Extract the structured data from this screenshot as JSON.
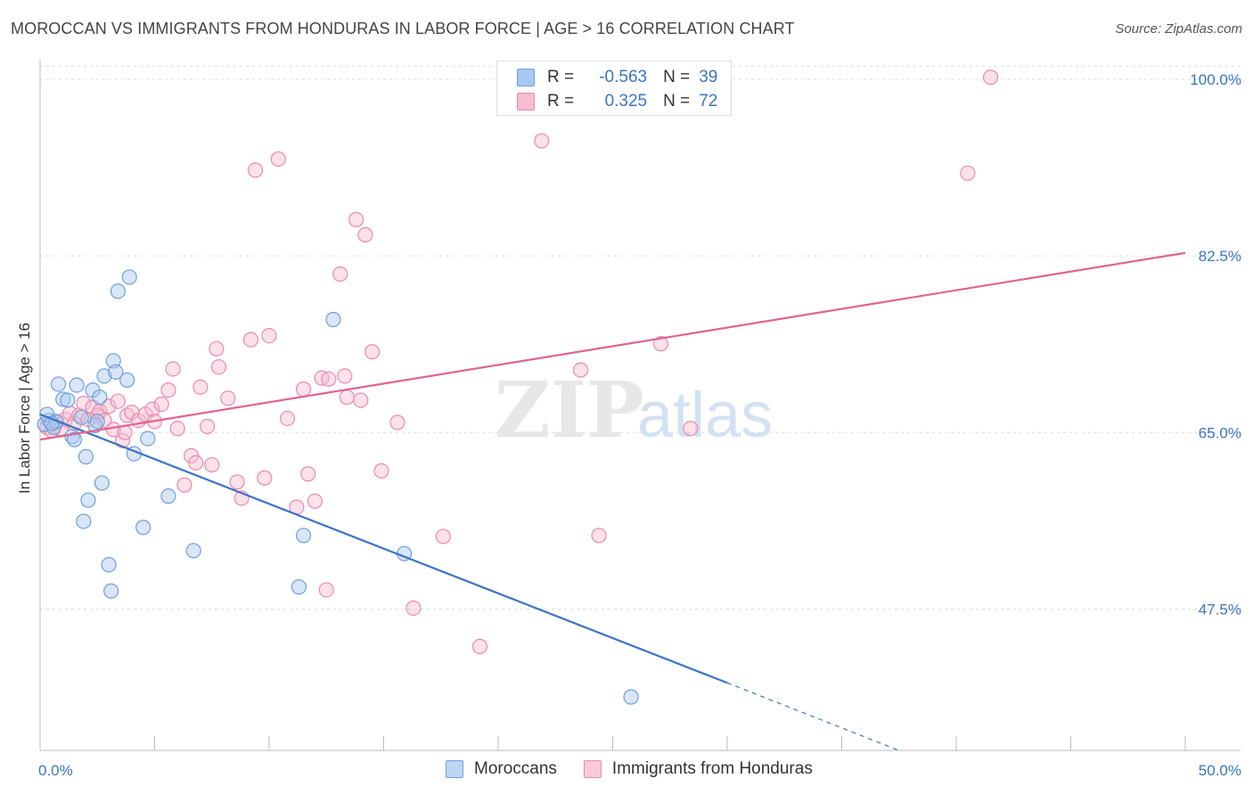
{
  "header": {
    "title": "MOROCCAN VS IMMIGRANTS FROM HONDURAS IN LABOR FORCE | AGE > 16 CORRELATION CHART",
    "source": "Source: ZipAtlas.com"
  },
  "watermark": {
    "zip": "ZIP",
    "atlas": "atlas"
  },
  "legend_top": {
    "rows": [
      {
        "r_label": "R =",
        "r_value": "-0.563",
        "n_label": "N =",
        "n_value": "39",
        "color": "#a8c8f0",
        "border": "#6f9fd8"
      },
      {
        "r_label": "R =",
        "r_value": "0.325",
        "n_label": "N =",
        "n_value": "72",
        "color": "#f7bcd0",
        "border": "#e98aab"
      }
    ]
  },
  "legend_bottom": {
    "items": [
      {
        "label": "Moroccans",
        "color": "#bcd5f5",
        "border": "#6f9fd8"
      },
      {
        "label": "Immigrants from Honduras",
        "color": "#f9cbd9",
        "border": "#e98aab"
      }
    ]
  },
  "chart_data": {
    "type": "scatter",
    "title": "MOROCCAN VS IMMIGRANTS FROM HONDURAS IN LABOR FORCE | AGE > 16 CORRELATION CHART",
    "xlabel": "",
    "ylabel": "In Labor Force | Age > 16",
    "xlim": [
      0,
      50
    ],
    "ylim": [
      33.5,
      101.5
    ],
    "x_tick_labels": [
      "0.0%",
      "50.0%"
    ],
    "y_ticks": [
      47.5,
      65.0,
      82.5,
      100.0
    ],
    "y_tick_labels": [
      "47.5%",
      "65.0%",
      "82.5%",
      "100.0%"
    ],
    "grid": true,
    "legend_placement": "top-center",
    "colors": {
      "moroccans": "#3b74c4",
      "honduras": "#e0648e",
      "tick_label": "#3b74c4"
    },
    "series": [
      {
        "name": "Moroccans",
        "color": "#6f9fd8",
        "trend": {
          "x1": 0,
          "y1": 66.8,
          "x2": 30,
          "y2": 40.2,
          "dash_x2": 37.5,
          "dash_y2": 33.5
        },
        "points": [
          [
            0.2,
            65.8
          ],
          [
            0.4,
            66.2
          ],
          [
            0.6,
            65.5
          ],
          [
            0.3,
            66.8
          ],
          [
            0.7,
            66.1
          ],
          [
            0.8,
            69.8
          ],
          [
            1.0,
            68.3
          ],
          [
            1.2,
            68.2
          ],
          [
            1.4,
            64.6
          ],
          [
            1.5,
            64.3
          ],
          [
            1.6,
            69.7
          ],
          [
            1.8,
            66.5
          ],
          [
            1.9,
            56.2
          ],
          [
            2.0,
            62.6
          ],
          [
            2.1,
            58.3
          ],
          [
            2.3,
            69.2
          ],
          [
            2.4,
            65.7
          ],
          [
            2.5,
            66.1
          ],
          [
            2.6,
            68.5
          ],
          [
            2.7,
            60.0
          ],
          [
            2.8,
            70.6
          ],
          [
            3.0,
            51.9
          ],
          [
            3.1,
            49.3
          ],
          [
            3.2,
            72.1
          ],
          [
            3.3,
            71.0
          ],
          [
            3.4,
            79.0
          ],
          [
            3.8,
            70.2
          ],
          [
            3.9,
            80.4
          ],
          [
            4.1,
            62.9
          ],
          [
            4.5,
            55.6
          ],
          [
            4.7,
            64.4
          ],
          [
            5.6,
            58.7
          ],
          [
            6.7,
            53.3
          ],
          [
            11.5,
            54.8
          ],
          [
            11.3,
            49.7
          ],
          [
            12.8,
            76.2
          ],
          [
            15.9,
            53.0
          ],
          [
            25.8,
            38.8
          ],
          [
            0.5,
            65.9
          ]
        ]
      },
      {
        "name": "Immigrants from Honduras",
        "color": "#e98aab",
        "trend": {
          "x1": 0,
          "y1": 64.3,
          "x2": 50,
          "y2": 82.8
        },
        "points": [
          [
            0.3,
            65.5
          ],
          [
            0.5,
            65.2
          ],
          [
            0.7,
            66.0
          ],
          [
            0.9,
            65.4
          ],
          [
            1.1,
            66.3
          ],
          [
            1.3,
            66.9
          ],
          [
            1.5,
            65.9
          ],
          [
            1.7,
            66.7
          ],
          [
            1.9,
            67.9
          ],
          [
            2.1,
            66.3
          ],
          [
            2.3,
            67.5
          ],
          [
            2.5,
            66.7
          ],
          [
            2.6,
            67.1
          ],
          [
            2.8,
            66.2
          ],
          [
            3.0,
            67.6
          ],
          [
            3.2,
            65.3
          ],
          [
            3.4,
            68.1
          ],
          [
            3.6,
            64.2
          ],
          [
            3.8,
            66.7
          ],
          [
            4.0,
            67.0
          ],
          [
            4.3,
            66.2
          ],
          [
            4.6,
            66.8
          ],
          [
            4.9,
            67.3
          ],
          [
            5.0,
            66.1
          ],
          [
            5.3,
            67.8
          ],
          [
            5.6,
            69.2
          ],
          [
            5.8,
            71.3
          ],
          [
            6.0,
            65.4
          ],
          [
            6.3,
            59.8
          ],
          [
            6.6,
            62.7
          ],
          [
            6.8,
            62.0
          ],
          [
            7.0,
            69.5
          ],
          [
            7.3,
            65.6
          ],
          [
            7.5,
            61.8
          ],
          [
            7.7,
            73.3
          ],
          [
            7.8,
            71.5
          ],
          [
            8.2,
            68.4
          ],
          [
            8.6,
            60.1
          ],
          [
            8.8,
            58.5
          ],
          [
            9.2,
            74.2
          ],
          [
            9.4,
            91.0
          ],
          [
            9.8,
            60.5
          ],
          [
            10.0,
            74.6
          ],
          [
            10.4,
            92.1
          ],
          [
            10.8,
            66.4
          ],
          [
            11.2,
            57.6
          ],
          [
            11.5,
            69.3
          ],
          [
            11.7,
            60.9
          ],
          [
            12.0,
            58.2
          ],
          [
            12.3,
            70.4
          ],
          [
            12.6,
            70.3
          ],
          [
            13.1,
            80.7
          ],
          [
            13.3,
            70.6
          ],
          [
            13.4,
            68.5
          ],
          [
            14.0,
            68.2
          ],
          [
            14.2,
            84.6
          ],
          [
            14.5,
            73.0
          ],
          [
            14.9,
            61.2
          ],
          [
            15.6,
            66.0
          ],
          [
            16.3,
            47.6
          ],
          [
            17.6,
            54.7
          ],
          [
            19.2,
            43.8
          ],
          [
            21.9,
            93.9
          ],
          [
            23.6,
            71.2
          ],
          [
            24.4,
            54.8
          ],
          [
            27.1,
            73.8
          ],
          [
            28.4,
            65.4
          ],
          [
            40.5,
            90.7
          ],
          [
            41.5,
            100.2
          ],
          [
            13.8,
            86.1
          ],
          [
            12.5,
            49.4
          ],
          [
            3.7,
            65.0
          ]
        ]
      }
    ]
  }
}
